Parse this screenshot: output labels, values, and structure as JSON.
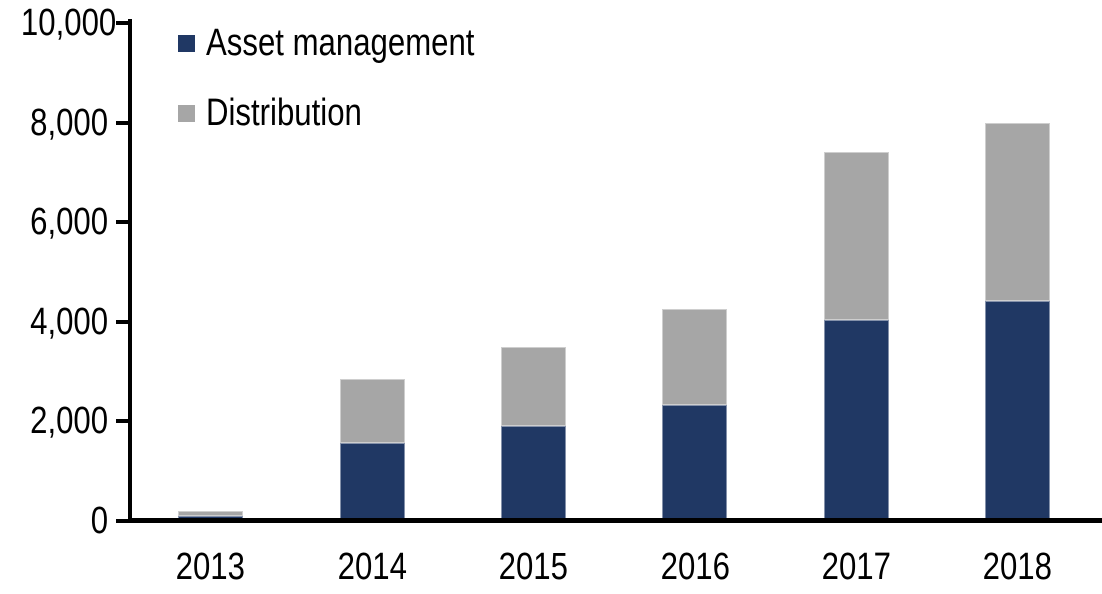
{
  "chart_data": {
    "type": "bar",
    "stacked": true,
    "title": "",
    "xlabel": "",
    "ylabel": "",
    "categories": [
      "2013",
      "2014",
      "2015",
      "2016",
      "2017",
      "2018"
    ],
    "series": [
      {
        "name": "Asset management",
        "color": "#203864",
        "values": [
          100,
          1570,
          1900,
          2330,
          4040,
          4420
        ]
      },
      {
        "name": "Distribution",
        "color": "#A6A6A6",
        "values": [
          100,
          1290,
          1600,
          1920,
          3360,
          3580
        ]
      }
    ],
    "totals": [
      200,
      2860,
      3500,
      4250,
      7400,
      8000
    ],
    "ylim": [
      0,
      10000
    ],
    "ytick_interval": 2000,
    "ytick_labels": [
      "0",
      "2,000",
      "4,000",
      "6,000",
      "8,000",
      "10,000"
    ],
    "grid": false,
    "legend_position": "top-left-inside",
    "axis_color": "#000000",
    "background_color": "#FFFFFF"
  }
}
